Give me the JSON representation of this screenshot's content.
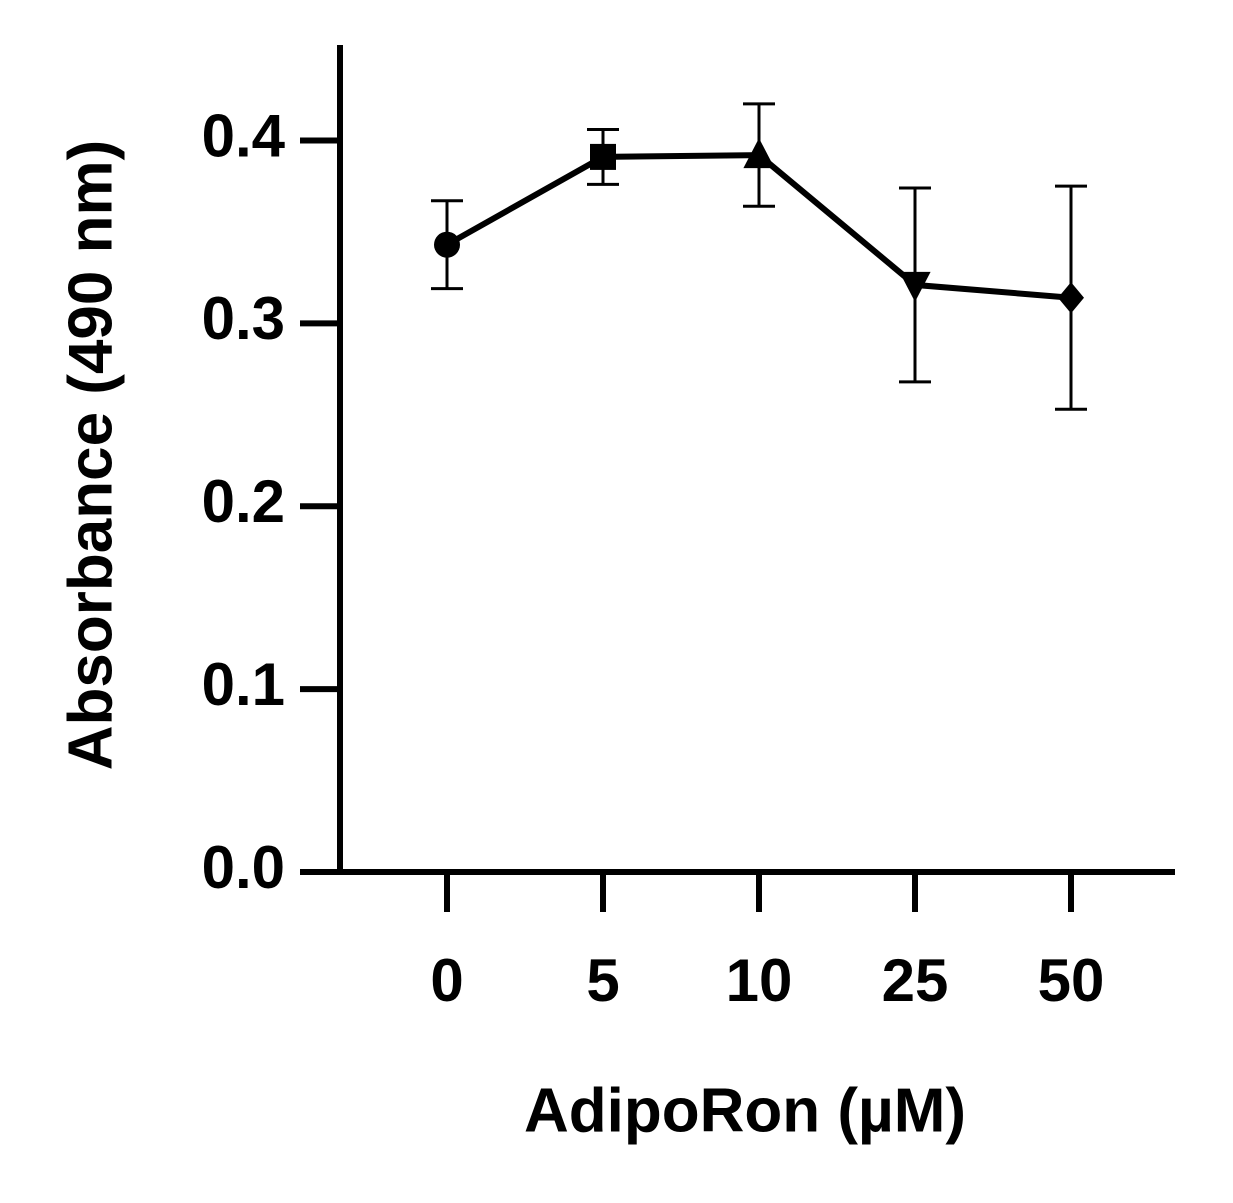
{
  "chart_data": {
    "type": "line",
    "x_label": "AdipoRon (µM)",
    "y_label": "Absorbance (490 nm)",
    "categories": [
      "0",
      "5",
      "10",
      "25",
      "50"
    ],
    "values": [
      0.343,
      0.391,
      0.392,
      0.321,
      0.314
    ],
    "errors": [
      0.024,
      0.015,
      0.028,
      0.053,
      0.061
    ],
    "markers": [
      "circle",
      "square",
      "triangle",
      "triangle-down",
      "diamond"
    ],
    "color": "#000000",
    "ylim": [
      0,
      0.45
    ],
    "yticks": [
      {
        "value": 0,
        "label": "0.0"
      },
      0.1,
      0.2,
      0.3,
      0.4
    ]
  }
}
